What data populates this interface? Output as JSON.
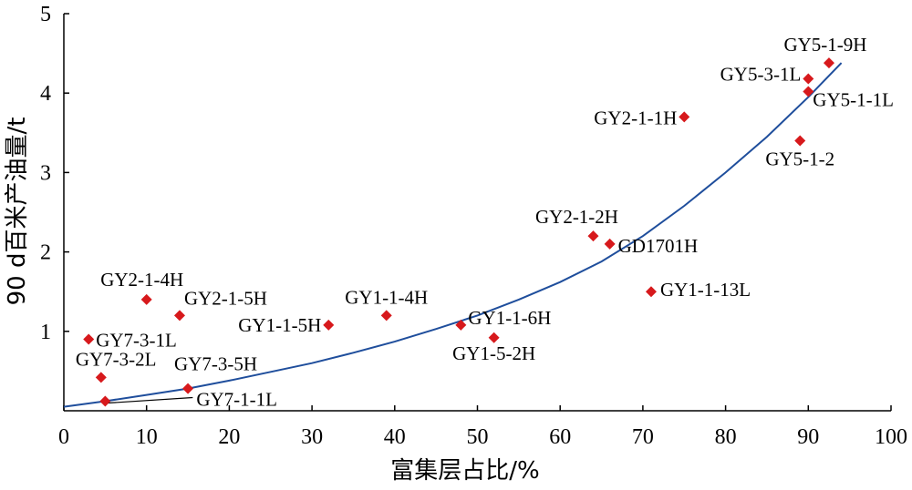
{
  "chart_data": {
    "type": "scatter",
    "title": "",
    "xlabel": "富集层占比/%",
    "ylabel": "90 d百米产油量/t",
    "xlim": [
      0,
      100
    ],
    "ylim": [
      0,
      5
    ],
    "x_ticks": [
      0,
      10,
      20,
      30,
      40,
      50,
      60,
      70,
      80,
      90,
      100
    ],
    "y_ticks": [
      1,
      2,
      3,
      4,
      5
    ],
    "marker_color": "#d7191c",
    "curve_color": "#1f4e9c",
    "grid": false,
    "points": [
      {
        "label": "GY7-3-1L",
        "x": 3,
        "y": 0.9
      },
      {
        "label": "GY7-3-2L",
        "x": 4.5,
        "y": 0.42
      },
      {
        "label": "GY7-1-1L",
        "x": 5,
        "y": 0.12
      },
      {
        "label": "GY2-1-4H",
        "x": 10,
        "y": 1.4
      },
      {
        "label": "GY2-1-5H",
        "x": 14,
        "y": 1.2
      },
      {
        "label": "GY7-3-5H",
        "x": 15,
        "y": 0.28
      },
      {
        "label": "GY1-1-5H",
        "x": 32,
        "y": 1.08
      },
      {
        "label": "GY1-1-4H",
        "x": 39,
        "y": 1.2
      },
      {
        "label": "GY1-1-6H",
        "x": 48,
        "y": 1.08
      },
      {
        "label": "GY1-5-2H",
        "x": 52,
        "y": 0.92
      },
      {
        "label": "GY2-1-2H",
        "x": 64,
        "y": 2.2
      },
      {
        "label": "GD1701H",
        "x": 66,
        "y": 2.1
      },
      {
        "label": "GY1-1-13L",
        "x": 71,
        "y": 1.5
      },
      {
        "label": "GY2-1-1H",
        "x": 75,
        "y": 3.7
      },
      {
        "label": "GY5-1-2",
        "x": 89,
        "y": 3.4
      },
      {
        "label": "GY5-3-1L",
        "x": 90,
        "y": 4.18
      },
      {
        "label": "GY5-1-1L",
        "x": 90,
        "y": 4.02
      },
      {
        "label": "GY5-1-9H",
        "x": 92.5,
        "y": 4.38
      }
    ],
    "fit_curve": {
      "x": [
        0,
        5,
        10,
        15,
        20,
        25,
        30,
        35,
        40,
        45,
        50,
        55,
        60,
        65,
        70,
        75,
        80,
        85,
        90,
        94
      ],
      "y": [
        0.05,
        0.12,
        0.2,
        0.28,
        0.38,
        0.49,
        0.6,
        0.73,
        0.87,
        1.03,
        1.2,
        1.4,
        1.62,
        1.88,
        2.2,
        2.58,
        3.0,
        3.45,
        3.95,
        4.38
      ]
    }
  }
}
